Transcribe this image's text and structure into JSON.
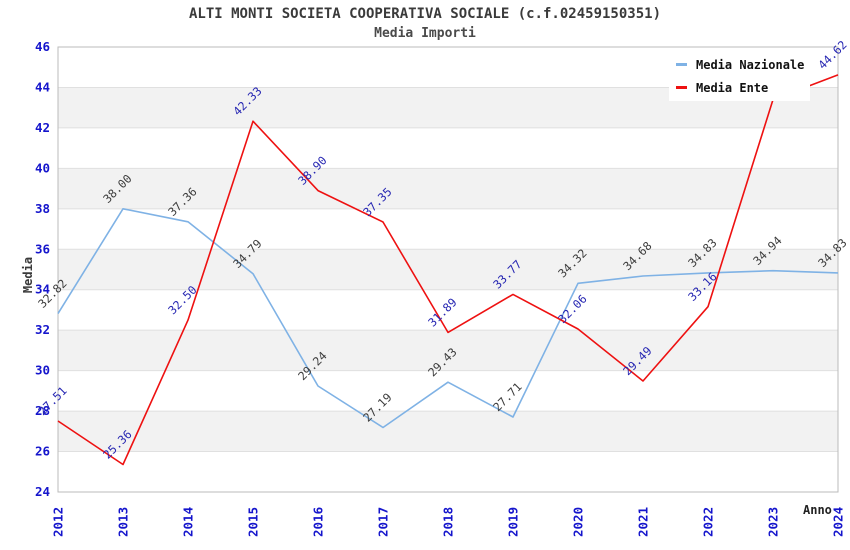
{
  "header": {
    "title": "ALTI MONTI SOCIETA COOPERATIVA SOCIALE (c.f.02459150351)",
    "subtitle": "Media Importi"
  },
  "legend": {
    "items": [
      {
        "label": "Media Nazionale",
        "color": "#7fb2e5"
      },
      {
        "label": "Media Ente",
        "color": "#ee1111"
      }
    ]
  },
  "axes": {
    "ylabel": "Media",
    "xlabel": "Anno",
    "ytick_color": "#1515cc",
    "xtick_color": "#1515cc"
  },
  "chart_data": {
    "type": "line",
    "title": "ALTI MONTI SOCIETA COOPERATIVA SOCIALE (c.f.02459150351)",
    "subtitle": "Media Importi",
    "xlabel": "Anno",
    "ylabel": "Media",
    "x": [
      2012,
      2013,
      2014,
      2015,
      2016,
      2017,
      2018,
      2019,
      2020,
      2021,
      2022,
      2023,
      2024
    ],
    "ylim": [
      24,
      46
    ],
    "ytick_step": 2,
    "grid": "horizontal-bands",
    "band_color": "#f2f2f2",
    "grid_color": "#e0e0e0",
    "border_color": "#bbbbbb",
    "legend_position": "top-right",
    "series": [
      {
        "name": "Media Nazionale",
        "color": "#7fb2e5",
        "label_color": "#3c3c3c",
        "values": [
          32.82,
          38.0,
          37.36,
          34.79,
          29.24,
          27.19,
          29.43,
          27.71,
          34.32,
          34.68,
          34.83,
          34.94,
          34.83
        ],
        "labels": [
          "32.82",
          "38.00",
          "37.36",
          "34.79",
          "29.24",
          "27.19",
          "29.43",
          "27.71",
          "34.32",
          "34.68",
          "34.83",
          "34.94",
          "34.83"
        ]
      },
      {
        "name": "Media Ente",
        "color": "#ee1111",
        "label_color": "#2626b2",
        "values": [
          27.51,
          25.36,
          32.5,
          42.33,
          38.9,
          37.35,
          31.89,
          33.77,
          32.06,
          29.49,
          33.16,
          43.4,
          44.62
        ],
        "labels": [
          "27.51",
          "25.36",
          "32.50",
          "42.33",
          "38.90",
          "37.35",
          "31.89",
          "33.77",
          "32.06",
          "29.49",
          "33.16",
          "",
          "44.62"
        ]
      }
    ]
  }
}
